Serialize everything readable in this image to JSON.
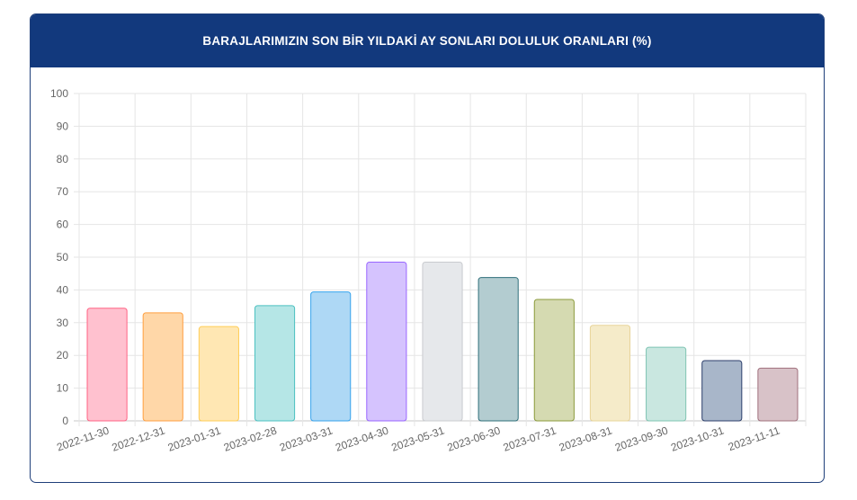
{
  "title": "BARAJLARIMIZIN SON BİR YILDAKİ AY SONLARI DOLULUK ORANLARI (%)",
  "chart_data": {
    "type": "bar",
    "categories": [
      "2022-11-30",
      "2022-12-31",
      "2023-01-31",
      "2023-02-28",
      "2023-03-31",
      "2023-04-30",
      "2023-05-31",
      "2023-06-30",
      "2023-07-31",
      "2023-08-31",
      "2023-09-30",
      "2023-10-31",
      "2023-11-11"
    ],
    "values": [
      34.4,
      33.0,
      28.8,
      35.2,
      39.4,
      48.5,
      48.5,
      43.8,
      37.1,
      29.2,
      22.5,
      18.4,
      16.1
    ],
    "ylim": [
      0,
      100
    ],
    "yticks": [
      "0",
      "10",
      "20",
      "30",
      "40",
      "50",
      "60",
      "70",
      "80",
      "90",
      "100"
    ],
    "grid": true,
    "colors": {
      "fill": [
        "#ffc1cf",
        "#ffd7a8",
        "#ffe7b3",
        "#b5e6e6",
        "#aed8f5",
        "#d5c3fe",
        "#e6e8eb",
        "#b3ccd0",
        "#d5dab1",
        "#f5ebc9",
        "#c9e7e0",
        "#a8b6c9",
        "#d8c2c8"
      ],
      "stroke": [
        "#ff6384",
        "#ff9f40",
        "#ffcd56",
        "#4bc0c0",
        "#36a2eb",
        "#9966ff",
        "#c9cbcf",
        "#2f6f7a",
        "#8a9a3a",
        "#e8d49a",
        "#7fc4b2",
        "#2c3e6b",
        "#a0707d"
      ]
    }
  }
}
